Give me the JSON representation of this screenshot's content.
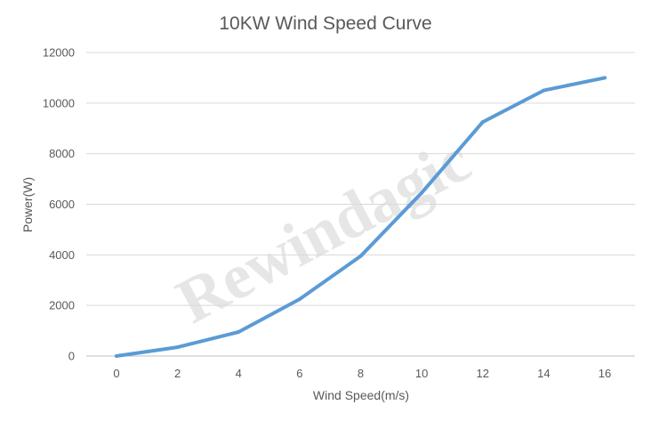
{
  "chart_data": {
    "type": "line",
    "title": "10KW Wind Speed Curve",
    "xlabel": "Wind Speed(m/s)",
    "ylabel": "Power(W)",
    "x": [
      0,
      2,
      4,
      6,
      8,
      10,
      12,
      14,
      16
    ],
    "xticks": [
      "0",
      "2",
      "4",
      "6",
      "8",
      "10",
      "12",
      "14",
      "16"
    ],
    "series": [
      {
        "values": [
          0,
          350,
          950,
          2250,
          3950,
          6450,
          9250,
          10500,
          11000
        ]
      }
    ],
    "yticks": [
      "0",
      "2000",
      "4000",
      "6000",
      "8000",
      "10000",
      "12000"
    ],
    "ylim": [
      0,
      12000
    ],
    "grid": true,
    "watermark": "Rewindagic",
    "colors": {
      "series": "#5b9bd5"
    }
  }
}
